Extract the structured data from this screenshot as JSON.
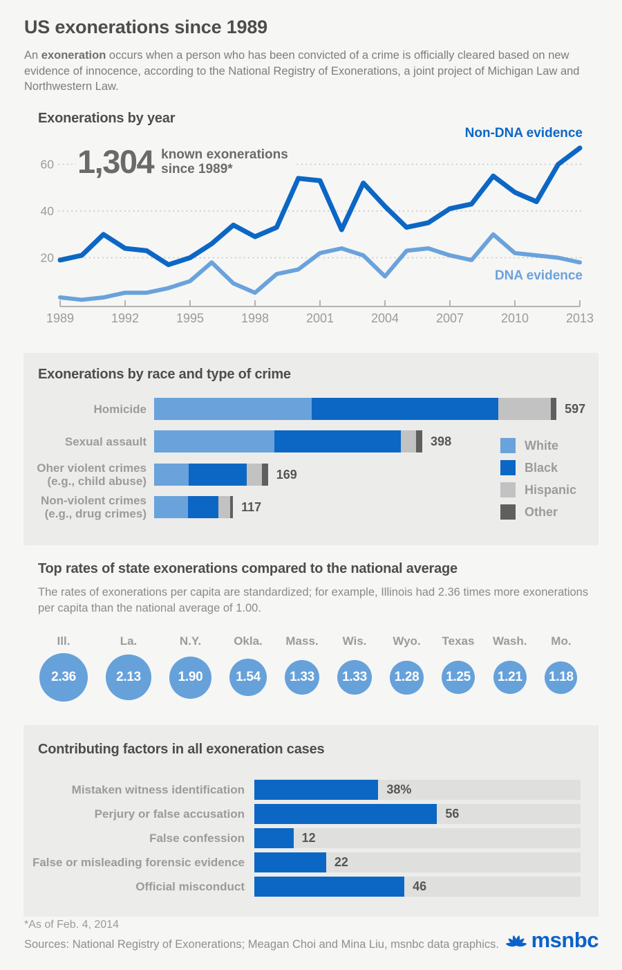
{
  "header": {
    "title": "US exonerations since 1989",
    "intro_prefix": "An ",
    "intro_bold": "exoneration",
    "intro_suffix": " occurs when a person who has been convicted of a crime is officially cleared based on new evidence of innocence, according to the National Registry of Exonerations, a joint project of Michigan Law and Northwestern Law."
  },
  "chart_data": [
    {
      "type": "line",
      "title": "Exonerations by year",
      "annotation": {
        "number": "1,304",
        "caption": [
          "known exonerations",
          "since 1989*"
        ]
      },
      "x": [
        1989,
        1990,
        1991,
        1992,
        1993,
        1994,
        1995,
        1996,
        1997,
        1998,
        1999,
        2000,
        2001,
        2002,
        2003,
        2004,
        2005,
        2006,
        2007,
        2008,
        2009,
        2010,
        2011,
        2012,
        2013
      ],
      "x_ticks": [
        1989,
        1992,
        1995,
        1998,
        2001,
        2004,
        2007,
        2010,
        2013
      ],
      "y_ticks": [
        20,
        40,
        60
      ],
      "ylim": [
        0,
        70
      ],
      "grid": "dotted-horizontal",
      "legend_position": "inline-labels",
      "series": [
        {
          "name": "Non-DNA evidence",
          "color": "#0c67c4",
          "values": [
            19,
            21,
            30,
            24,
            23,
            17,
            20,
            26,
            34,
            29,
            33,
            54,
            53,
            32,
            52,
            42,
            33,
            35,
            41,
            43,
            55,
            48,
            44,
            60,
            67
          ]
        },
        {
          "name": "DNA evidence",
          "color": "#6aa2db",
          "values": [
            3,
            2,
            3,
            5,
            5,
            7,
            10,
            18,
            9,
            5,
            13,
            15,
            22,
            24,
            21,
            12,
            23,
            24,
            21,
            19,
            30,
            22,
            21,
            20,
            18
          ]
        }
      ]
    },
    {
      "type": "bar",
      "subtype": "horizontal-stacked",
      "title": "Exonerations by race and type of crime",
      "categories": [
        [
          "Homicide"
        ],
        [
          "Sexual assault"
        ],
        [
          "Oher violent crimes",
          "(e.g., child abuse)"
        ],
        [
          "Non-violent crimes",
          "(e.g., drug crimes)"
        ]
      ],
      "totals": [
        597,
        398,
        169,
        117
      ],
      "series": [
        {
          "name": "White",
          "color": "#6aa2db",
          "values": [
            234,
            178,
            51,
            50
          ]
        },
        {
          "name": "Black",
          "color": "#0c67c4",
          "values": [
            277,
            188,
            87,
            45
          ]
        },
        {
          "name": "Hispanic",
          "color": "#c2c2c2",
          "values": [
            78,
            23,
            22,
            18
          ]
        },
        {
          "name": "Other",
          "color": "#5f5f5f",
          "values": [
            8,
            9,
            9,
            4
          ]
        }
      ],
      "legend_position": "right"
    },
    {
      "type": "bubble",
      "title": "Top rates of state exonerations compared to the national average",
      "subtitle": "The rates of exonerations per capita are standardized; for example, Illinois had 2.36 times more exonerations per capita than the national average of 1.00.",
      "categories": [
        "Ill.",
        "La.",
        "N.Y.",
        "Okla.",
        "Mass.",
        "Wis.",
        "Wyo.",
        "Texas",
        "Wash.",
        "Mo."
      ],
      "values": [
        2.36,
        2.13,
        1.9,
        1.54,
        1.33,
        1.33,
        1.28,
        1.25,
        1.21,
        1.18
      ],
      "color": "#66a1da"
    },
    {
      "type": "bar",
      "subtype": "horizontal",
      "title": "Contributing factors in all exoneration cases",
      "categories": [
        "Mistaken witness identification",
        "Perjury or false accusation",
        "False confession",
        "False or misleading forensic evidence",
        "Official misconduct"
      ],
      "values": [
        38,
        56,
        12,
        22,
        46
      ],
      "value_labels": [
        "38%",
        "56",
        "12",
        "22",
        "46"
      ],
      "xlim": [
        0,
        100
      ],
      "color": "#0c67c4",
      "track_color": "#dfdfde"
    }
  ],
  "footer": {
    "note": "*As of Feb. 4, 2014",
    "sources": "Sources: National Registry of Exonerations; Meagan Choi and Mina Liu, msnbc data graphics.",
    "logo_text": "msnbc",
    "logo_color": "#0b62c9"
  }
}
